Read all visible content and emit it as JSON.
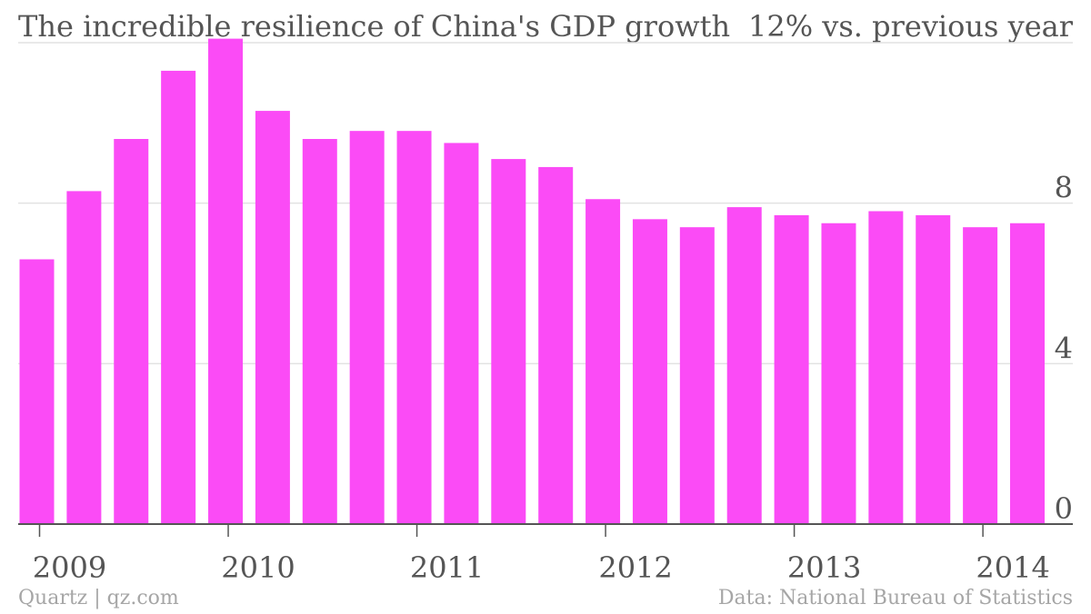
{
  "header": {
    "title": "The incredible resilience of China's GDP growth",
    "unit_label": "12% vs. previous year"
  },
  "footer": {
    "source_left": "Quartz | qz.com",
    "source_right": "Data: National Bureau of Statistics"
  },
  "colors": {
    "bar": "#fb4bf6",
    "grid": "#e2e2e2",
    "axis": "#555555",
    "text": "#555555",
    "footer_text": "#a6a6a6"
  },
  "chart_data": {
    "type": "bar",
    "title": "The incredible resilience of China's GDP growth",
    "xlabel": "",
    "ylabel": "",
    "ylim": [
      0,
      12
    ],
    "yticks": [
      "0",
      "4",
      "8",
      "12%"
    ],
    "xticks": [
      "2009",
      "2010",
      "2011",
      "2012",
      "2013",
      "2014"
    ],
    "grid": true,
    "categories": [
      "2009 Q1",
      "2009 Q2",
      "2009 Q3",
      "2009 Q4",
      "2010 Q1",
      "2010 Q2",
      "2010 Q3",
      "2010 Q4",
      "2011 Q1",
      "2011 Q2",
      "2011 Q3",
      "2011 Q4",
      "2012 Q1",
      "2012 Q2",
      "2012 Q3",
      "2012 Q4",
      "2013 Q1",
      "2013 Q2",
      "2013 Q3",
      "2013 Q4",
      "2014 Q1",
      "2014 Q2"
    ],
    "values": [
      6.6,
      8.3,
      9.6,
      11.3,
      12.1,
      10.3,
      9.6,
      9.8,
      9.8,
      9.5,
      9.1,
      8.9,
      8.1,
      7.6,
      7.4,
      7.9,
      7.7,
      7.5,
      7.8,
      7.7,
      7.4,
      7.5
    ]
  }
}
